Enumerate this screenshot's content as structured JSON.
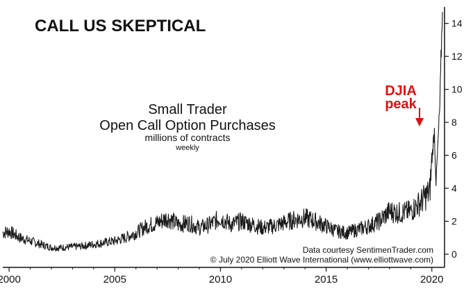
{
  "chart_data": {
    "type": "line",
    "title": "CALL US SKEPTICAL",
    "subtitle": [
      "Small Trader",
      "Open Call Option Purchases",
      "millions of contracts",
      "weekly"
    ],
    "annotation": {
      "text": [
        "DJIA",
        "peak"
      ],
      "x": 2020.1,
      "y": 7.9,
      "color": "#e01010"
    },
    "credits": [
      "Data courtesy SentimenTrader.com",
      "© July 2020 Elliott Wave International (www.elliottwave.com)"
    ],
    "x_ticks": [
      "2000",
      "2005",
      "2010",
      "2015",
      "2020"
    ],
    "x_tick_values": [
      2000,
      2005,
      2010,
      2015,
      2020
    ],
    "y_ticks": [
      "0",
      "2",
      "4",
      "6",
      "8",
      "10",
      "12",
      "14"
    ],
    "y_tick_values": [
      0,
      2,
      4,
      6,
      8,
      10,
      12,
      14
    ],
    "xlim": [
      1999.7,
      2020.6
    ],
    "ylim": [
      -0.8,
      15
    ],
    "y_axis_side": "right",
    "grid": false,
    "series": [
      {
        "color": "#1a1a1a",
        "points": [
          [
            1999.7,
            1.3
          ],
          [
            2000.0,
            1.4
          ],
          [
            2000.5,
            1.0
          ],
          [
            2001.0,
            0.8
          ],
          [
            2001.5,
            0.6
          ],
          [
            2002.0,
            0.4
          ],
          [
            2002.5,
            0.4
          ],
          [
            2003.0,
            0.45
          ],
          [
            2003.5,
            0.5
          ],
          [
            2004.0,
            0.6
          ],
          [
            2004.5,
            0.7
          ],
          [
            2005.0,
            0.8
          ],
          [
            2005.5,
            1.0
          ],
          [
            2006.0,
            1.3
          ],
          [
            2006.5,
            1.7
          ],
          [
            2007.0,
            1.9
          ],
          [
            2007.5,
            2.2
          ],
          [
            2008.0,
            1.8
          ],
          [
            2008.5,
            1.9
          ],
          [
            2009.0,
            1.6
          ],
          [
            2009.5,
            1.8
          ],
          [
            2010.0,
            2.2
          ],
          [
            2010.5,
            1.8
          ],
          [
            2011.0,
            2.0
          ],
          [
            2011.5,
            1.8
          ],
          [
            2012.0,
            1.6
          ],
          [
            2012.5,
            1.7
          ],
          [
            2013.0,
            1.9
          ],
          [
            2013.5,
            2.1
          ],
          [
            2014.0,
            2.2
          ],
          [
            2014.5,
            2.0
          ],
          [
            2015.0,
            1.7
          ],
          [
            2015.5,
            1.4
          ],
          [
            2016.0,
            1.3
          ],
          [
            2016.5,
            1.5
          ],
          [
            2017.0,
            1.7
          ],
          [
            2017.5,
            2.0
          ],
          [
            2018.0,
            2.6
          ],
          [
            2018.5,
            2.5
          ],
          [
            2019.0,
            2.6
          ],
          [
            2019.5,
            3.2
          ],
          [
            2019.9,
            3.8
          ],
          [
            2020.05,
            6.5
          ],
          [
            2020.12,
            7.5
          ],
          [
            2020.2,
            4.3
          ],
          [
            2020.3,
            7.0
          ],
          [
            2020.38,
            9.0
          ],
          [
            2020.45,
            12.5
          ],
          [
            2020.5,
            14.7
          ]
        ]
      }
    ]
  }
}
